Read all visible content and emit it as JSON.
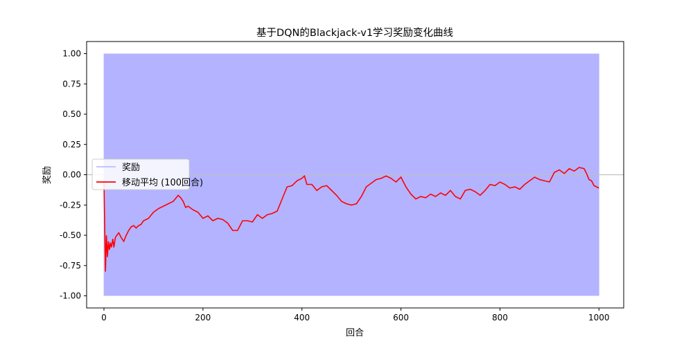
{
  "chart_data": {
    "type": "line",
    "title": "基于DQN的Blackjack-v1学习奖励变化曲线",
    "xlabel": "回合",
    "ylabel": "奖励",
    "xlim": [
      -35,
      1050
    ],
    "ylim": [
      -1.1,
      1.1
    ],
    "x_ticks": [
      0,
      200,
      400,
      600,
      800,
      1000
    ],
    "y_ticks": [
      -1.0,
      -0.75,
      -0.5,
      -0.25,
      0.0,
      0.25,
      0.5,
      0.75,
      1.0
    ],
    "x_tick_labels": [
      "0",
      "200",
      "400",
      "600",
      "800",
      "1000"
    ],
    "y_tick_labels": [
      "-1.00",
      "-0.75",
      "-0.50",
      "-0.25",
      "0.00",
      "0.25",
      "0.50",
      "0.75",
      "1.00"
    ],
    "reference_line": {
      "y": 0.0,
      "color": "#c0c0c0"
    },
    "legend_position": "center-left",
    "grid": false,
    "series": [
      {
        "name": "奖励",
        "color": "#b3b3ff",
        "style": "thin",
        "description_values": "per-episode reward in {-1, 0, 1}",
        "values": [
          -1,
          -1,
          -1,
          -1,
          1,
          -1,
          -1,
          1,
          -1,
          -1,
          -1,
          1,
          -1,
          -1,
          1,
          -1,
          1,
          -1,
          -1,
          1,
          -1,
          -1,
          -1,
          1,
          -1,
          -1,
          1,
          -1,
          -1,
          -1
        ]
      },
      {
        "name": "移动平均 (100回合)",
        "color": "#ff0000",
        "style": "solid",
        "x": [
          0,
          3,
          5,
          7,
          9,
          11,
          13,
          15,
          18,
          20,
          23,
          26,
          30,
          35,
          40,
          45,
          50,
          55,
          60,
          65,
          70,
          75,
          80,
          90,
          100,
          110,
          120,
          130,
          140,
          150,
          155,
          160,
          165,
          170,
          180,
          190,
          200,
          210,
          220,
          230,
          240,
          250,
          260,
          270,
          280,
          290,
          300,
          310,
          320,
          330,
          340,
          350,
          360,
          370,
          380,
          390,
          400,
          405,
          410,
          420,
          430,
          440,
          450,
          460,
          470,
          480,
          490,
          500,
          510,
          520,
          530,
          540,
          550,
          560,
          570,
          580,
          590,
          600,
          610,
          620,
          630,
          640,
          650,
          660,
          670,
          680,
          690,
          700,
          710,
          720,
          730,
          740,
          750,
          760,
          770,
          780,
          790,
          800,
          810,
          820,
          830,
          840,
          850,
          860,
          870,
          880,
          890,
          900,
          910,
          920,
          930,
          940,
          950,
          960,
          970,
          975,
          980,
          985,
          990,
          1000
        ],
        "values": [
          -0.05,
          -0.8,
          -0.5,
          -0.68,
          -0.55,
          -0.62,
          -0.56,
          -0.6,
          -0.53,
          -0.6,
          -0.52,
          -0.5,
          -0.48,
          -0.52,
          -0.55,
          -0.5,
          -0.46,
          -0.43,
          -0.42,
          -0.44,
          -0.42,
          -0.41,
          -0.38,
          -0.36,
          -0.31,
          -0.28,
          -0.26,
          -0.24,
          -0.22,
          -0.17,
          -0.19,
          -0.22,
          -0.27,
          -0.26,
          -0.29,
          -0.31,
          -0.36,
          -0.34,
          -0.38,
          -0.36,
          -0.37,
          -0.4,
          -0.46,
          -0.46,
          -0.38,
          -0.38,
          -0.39,
          -0.33,
          -0.36,
          -0.33,
          -0.32,
          -0.3,
          -0.2,
          -0.1,
          -0.09,
          -0.05,
          -0.03,
          -0.01,
          -0.08,
          -0.08,
          -0.13,
          -0.1,
          -0.09,
          -0.13,
          -0.17,
          -0.22,
          -0.24,
          -0.25,
          -0.24,
          -0.18,
          -0.1,
          -0.07,
          -0.04,
          -0.03,
          -0.01,
          -0.03,
          -0.06,
          -0.02,
          -0.1,
          -0.16,
          -0.2,
          -0.18,
          -0.19,
          -0.16,
          -0.18,
          -0.15,
          -0.17,
          -0.13,
          -0.18,
          -0.2,
          -0.13,
          -0.12,
          -0.14,
          -0.17,
          -0.13,
          -0.08,
          -0.09,
          -0.06,
          -0.08,
          -0.11,
          -0.1,
          -0.12,
          -0.08,
          -0.05,
          -0.02,
          -0.04,
          -0.05,
          -0.06,
          0.02,
          0.04,
          0.01,
          0.05,
          0.03,
          0.06,
          0.05,
          0.01,
          -0.04,
          -0.05,
          -0.09,
          -0.11
        ]
      }
    ]
  }
}
